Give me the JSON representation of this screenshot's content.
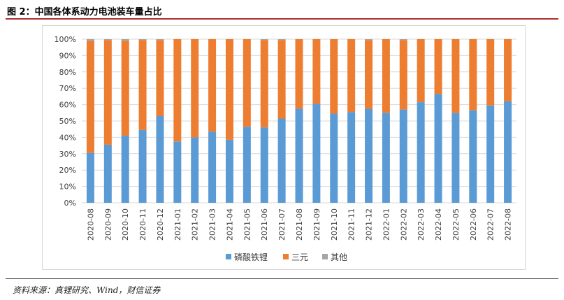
{
  "figure": {
    "title": "图 2：中国各体系动力电池装车量占比",
    "source_label": "资料来源：",
    "source_text": "真锂研究、Wind，财信证券"
  },
  "chart_data": {
    "type": "bar",
    "stacked": true,
    "categories": [
      "2020-08",
      "2020-09",
      "2020-10",
      "2020-11",
      "2020-12",
      "2021-01",
      "2021-02",
      "2021-03",
      "2021-04",
      "2021-05",
      "2021-06",
      "2021-07",
      "2021-08",
      "2021-09",
      "2021-10",
      "2021-11",
      "2021-12",
      "2022-01",
      "2022-02",
      "2022-03",
      "2022-04",
      "2022-05",
      "2022-06",
      "2022-07",
      "2022-08"
    ],
    "series": [
      {
        "name": "磷酸铁锂",
        "color": "#5b9bd5",
        "values": [
          30.5,
          35.5,
          41,
          44.5,
          53,
          37.5,
          40,
          43.5,
          38.5,
          46.5,
          46,
          51.5,
          57.5,
          60.5,
          54.5,
          55.5,
          57.5,
          55,
          57,
          61.5,
          66.5,
          55,
          56.5,
          59.5,
          62
        ]
      },
      {
        "name": "三元",
        "color": "#ed7d31",
        "values": [
          68.5,
          64,
          58,
          55,
          46.5,
          62.5,
          60,
          56.5,
          61.5,
          53.5,
          53.5,
          48,
          42.5,
          39.5,
          45.5,
          44.5,
          42,
          45,
          42.5,
          38.5,
          33.5,
          45,
          43.5,
          40.5,
          38
        ]
      },
      {
        "name": "其他",
        "color": "#a5a5a5",
        "values": [
          1,
          0.5,
          1,
          0.5,
          0.5,
          0,
          0,
          0,
          0,
          0,
          0.5,
          0.5,
          0,
          0,
          0,
          0,
          0.5,
          0,
          0.5,
          0,
          0,
          0,
          0,
          0,
          0
        ]
      }
    ],
    "yticks": [
      "0%",
      "10%",
      "20%",
      "30%",
      "40%",
      "50%",
      "60%",
      "70%",
      "80%",
      "90%",
      "100%"
    ],
    "ylim": [
      0,
      100
    ],
    "grid": true,
    "legend": "bottom"
  }
}
